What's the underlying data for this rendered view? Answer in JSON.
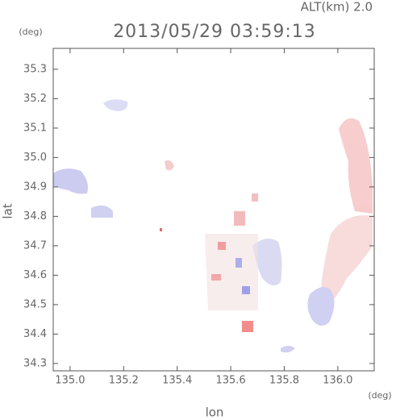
{
  "chart_data": {
    "type": "map",
    "title": "2013/05/29 03:59:13",
    "subtitle": "ALT(km) 2.0",
    "ylabel": "lat",
    "ylabel_unit": "(deg)",
    "xlabel": "lon",
    "xlabel_unit": "(deg)",
    "xlim": [
      134.937,
      136.136
    ],
    "ylim": [
      34.275,
      35.371
    ],
    "xticks": [
      {
        "value": 135.0,
        "label": "135.0"
      },
      {
        "value": 135.2,
        "label": "135.2"
      },
      {
        "value": 135.4,
        "label": "135.4"
      },
      {
        "value": 135.6,
        "label": "135.6"
      },
      {
        "value": 135.8,
        "label": "135.8"
      },
      {
        "value": 136.0,
        "label": "136.0"
      }
    ],
    "yticks": [
      {
        "value": 34.3,
        "label": "34.3"
      },
      {
        "value": 34.4,
        "label": "34.4"
      },
      {
        "value": 34.5,
        "label": "34.5"
      },
      {
        "value": 34.6,
        "label": "34.6"
      },
      {
        "value": 34.7,
        "label": "34.7"
      },
      {
        "value": 34.8,
        "label": "34.8"
      },
      {
        "value": 34.9,
        "label": "34.9"
      },
      {
        "value": 35.0,
        "label": "35.0"
      },
      {
        "value": 35.1,
        "label": "35.1"
      },
      {
        "value": 35.2,
        "label": "35.2"
      },
      {
        "value": 35.3,
        "label": "35.3"
      }
    ]
  }
}
